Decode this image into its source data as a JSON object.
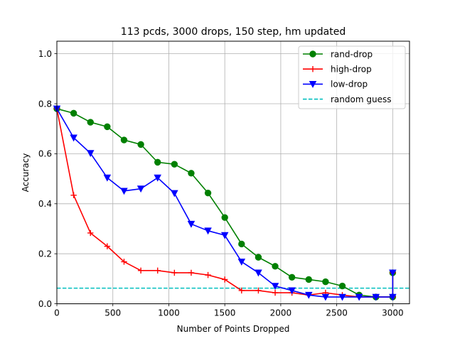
{
  "chart_data": {
    "type": "line",
    "title": "113 pcds, 3000 drops, 150 step, hm updated",
    "xlabel": "Number of Points Dropped",
    "ylabel": "Accuracy",
    "xlim": [
      0,
      3150
    ],
    "ylim": [
      0,
      1.05
    ],
    "xticks": [
      0,
      500,
      1000,
      1500,
      2000,
      2500,
      3000
    ],
    "xtick_labels": [
      "0",
      "500",
      "1000",
      "1500",
      "2000",
      "2500",
      "3000"
    ],
    "yticks": [
      0,
      0.2,
      0.4,
      0.6,
      0.8,
      1.0
    ],
    "ytick_labels": [
      "0.0",
      "0.2",
      "0.4",
      "0.6",
      "0.8",
      "1.0"
    ],
    "grid": true,
    "legend_position": "top-right",
    "x": [
      0,
      150,
      300,
      450,
      600,
      750,
      900,
      1050,
      1200,
      1350,
      1500,
      1650,
      1800,
      1950,
      2100,
      2250,
      2400,
      2550,
      2700,
      2850,
      3000,
      3000
    ],
    "series": [
      {
        "name": "rand-drop",
        "color": "#008000",
        "marker": "circle",
        "values": [
          0.78,
          0.762,
          0.726,
          0.708,
          0.655,
          0.637,
          0.566,
          0.558,
          0.522,
          0.443,
          0.345,
          0.239,
          0.186,
          0.15,
          0.106,
          0.097,
          0.088,
          0.071,
          0.035,
          0.027,
          0.027,
          0.124
        ]
      },
      {
        "name": "high-drop",
        "color": "#ff0000",
        "marker": "plus",
        "values": [
          0.78,
          0.434,
          0.283,
          0.23,
          0.168,
          0.133,
          0.133,
          0.124,
          0.124,
          0.115,
          0.097,
          0.053,
          0.053,
          0.044,
          0.044,
          0.035,
          0.044,
          0.035,
          0.027,
          0.027,
          0.027,
          0.124
        ]
      },
      {
        "name": "low-drop",
        "color": "#0000ff",
        "marker": "triangle-down",
        "values": [
          0.78,
          0.664,
          0.602,
          0.504,
          0.451,
          0.46,
          0.504,
          0.442,
          0.319,
          0.292,
          0.274,
          0.168,
          0.124,
          0.071,
          0.053,
          0.035,
          0.027,
          0.027,
          0.027,
          0.027,
          0.027,
          0.124
        ]
      }
    ],
    "reference_lines": [
      {
        "name": "random guess",
        "color": "#00bfbf",
        "style": "dashed",
        "y": 0.0625
      }
    ]
  }
}
